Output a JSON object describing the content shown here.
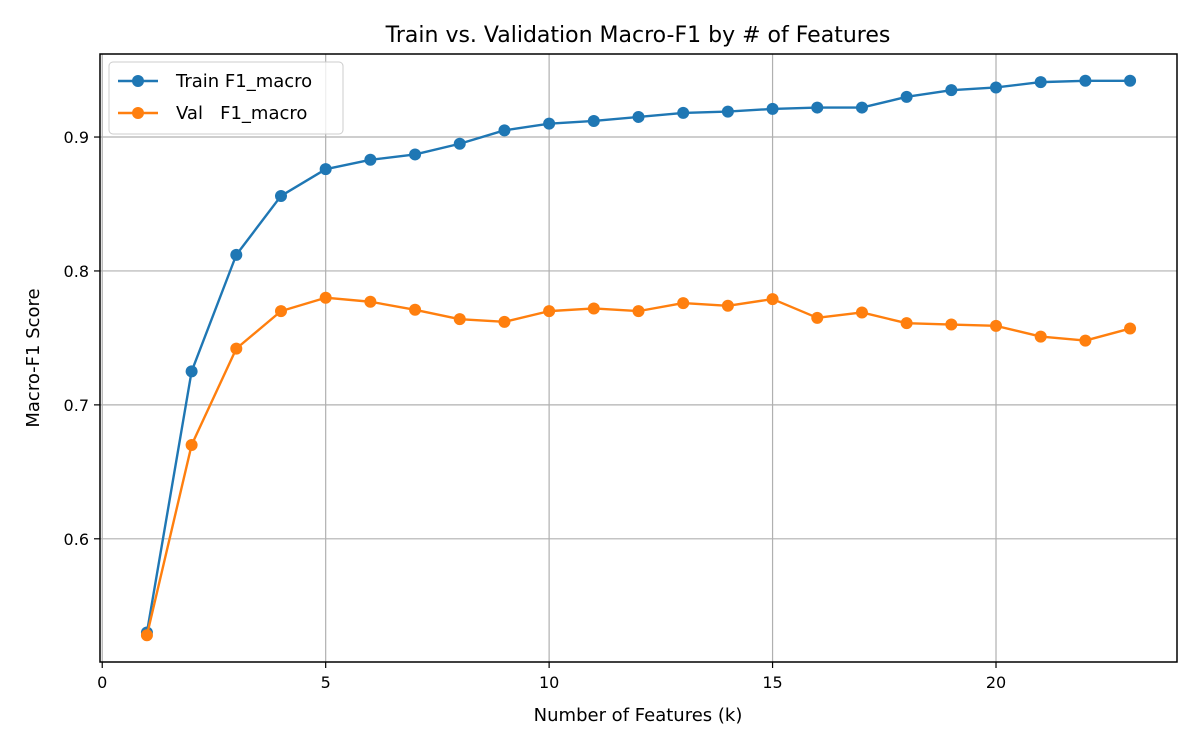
{
  "chart_data": {
    "type": "line",
    "title": "Train vs. Validation Macro-F1 by # of Features",
    "xlabel": "Number of Features (k)",
    "ylabel": "Macro-F1 Score",
    "xlim": [
      -0.05,
      24.05
    ],
    "ylim": [
      0.508,
      0.962
    ],
    "xticks": [
      0,
      5,
      10,
      15,
      20
    ],
    "yticks": [
      0.6,
      0.7,
      0.8,
      0.9
    ],
    "xtick_labels": [
      "0",
      "5",
      "10",
      "15",
      "20"
    ],
    "ytick_labels": [
      "0.6",
      "0.7",
      "0.8",
      "0.9"
    ],
    "grid": true,
    "legend_position": "top-left",
    "x": [
      1,
      2,
      3,
      4,
      5,
      6,
      7,
      8,
      9,
      10,
      11,
      12,
      13,
      14,
      15,
      16,
      17,
      18,
      19,
      20,
      21,
      22,
      23
    ],
    "series": [
      {
        "name": "Train F1_macro",
        "color": "#1f77b4",
        "marker": "circle",
        "values": [
          0.53,
          0.725,
          0.812,
          0.856,
          0.876,
          0.883,
          0.887,
          0.895,
          0.905,
          0.91,
          0.912,
          0.915,
          0.918,
          0.919,
          0.921,
          0.922,
          0.922,
          0.93,
          0.935,
          0.937,
          0.941,
          0.942,
          0.942
        ]
      },
      {
        "name": "Val   F1_macro",
        "color": "#ff7f0e",
        "marker": "circle",
        "values": [
          0.528,
          0.67,
          0.742,
          0.77,
          0.78,
          0.777,
          0.771,
          0.764,
          0.762,
          0.77,
          0.772,
          0.77,
          0.776,
          0.774,
          0.779,
          0.765,
          0.769,
          0.761,
          0.76,
          0.759,
          0.751,
          0.748,
          0.757
        ]
      }
    ]
  }
}
